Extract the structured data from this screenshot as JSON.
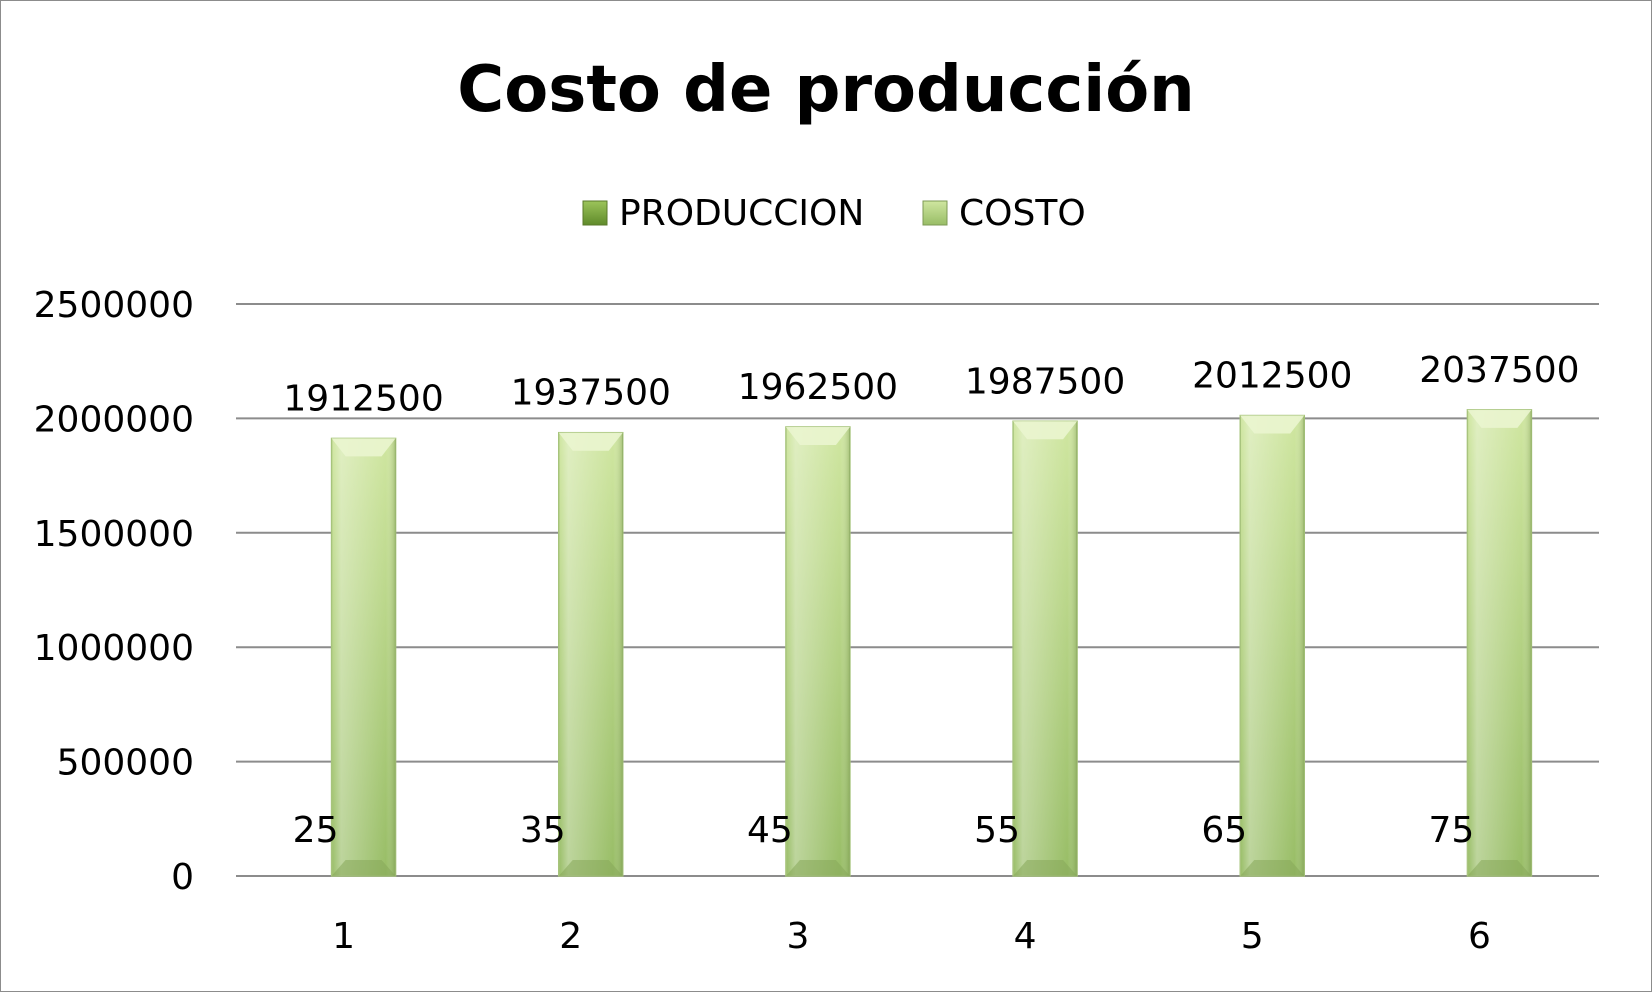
{
  "chart_data": {
    "type": "bar",
    "title": "Costo de producción",
    "xlabel": "",
    "ylabel": "",
    "categories": [
      "1",
      "2",
      "3",
      "4",
      "5",
      "6"
    ],
    "series": [
      {
        "name": "PRODUCCION",
        "values": [
          25,
          35,
          45,
          55,
          65,
          75
        ]
      },
      {
        "name": "COSTO",
        "values": [
          1912500,
          1937500,
          1962500,
          1987500,
          2012500,
          2037500
        ]
      }
    ],
    "ylim": [
      0,
      2500000
    ],
    "yticks": [
      "0",
      "500000",
      "1000000",
      "1500000",
      "2000000",
      "2500000"
    ],
    "grid": true,
    "legend": "top",
    "colors": {
      "produccion": "#7aa23a",
      "costo_light": "#cfe6a0",
      "costo_dark": "#98bd66",
      "grid": "#8c8c8c"
    }
  }
}
